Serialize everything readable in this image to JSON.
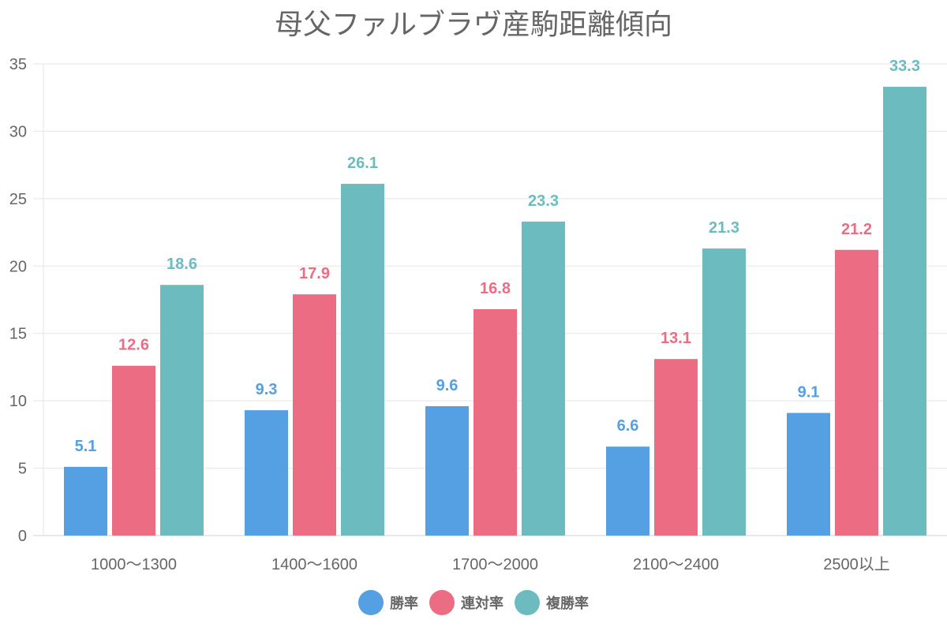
{
  "chart_data": {
    "type": "bar",
    "title": "母父ファルブラヴ産駒距離傾向",
    "xlabel": "",
    "ylabel": "",
    "categories": [
      "1000〜1300",
      "1400〜1600",
      "1700〜2000",
      "2100〜2400",
      "2500以上"
    ],
    "series": [
      {
        "name": "勝率",
        "color": "#559fe3",
        "values": [
          5.1,
          9.3,
          9.6,
          6.6,
          9.1
        ]
      },
      {
        "name": "連対率",
        "color": "#ec6d83",
        "values": [
          12.6,
          17.9,
          16.8,
          13.1,
          21.2
        ]
      },
      {
        "name": "複勝率",
        "color": "#6cbcbf",
        "values": [
          18.6,
          26.1,
          23.3,
          21.3,
          33.3
        ]
      }
    ],
    "ylim": [
      0,
      35
    ],
    "yticks": [
      0,
      5,
      10,
      15,
      20,
      25,
      30,
      35
    ],
    "grid": true,
    "data_labels": true,
    "legend_position": "bottom"
  }
}
